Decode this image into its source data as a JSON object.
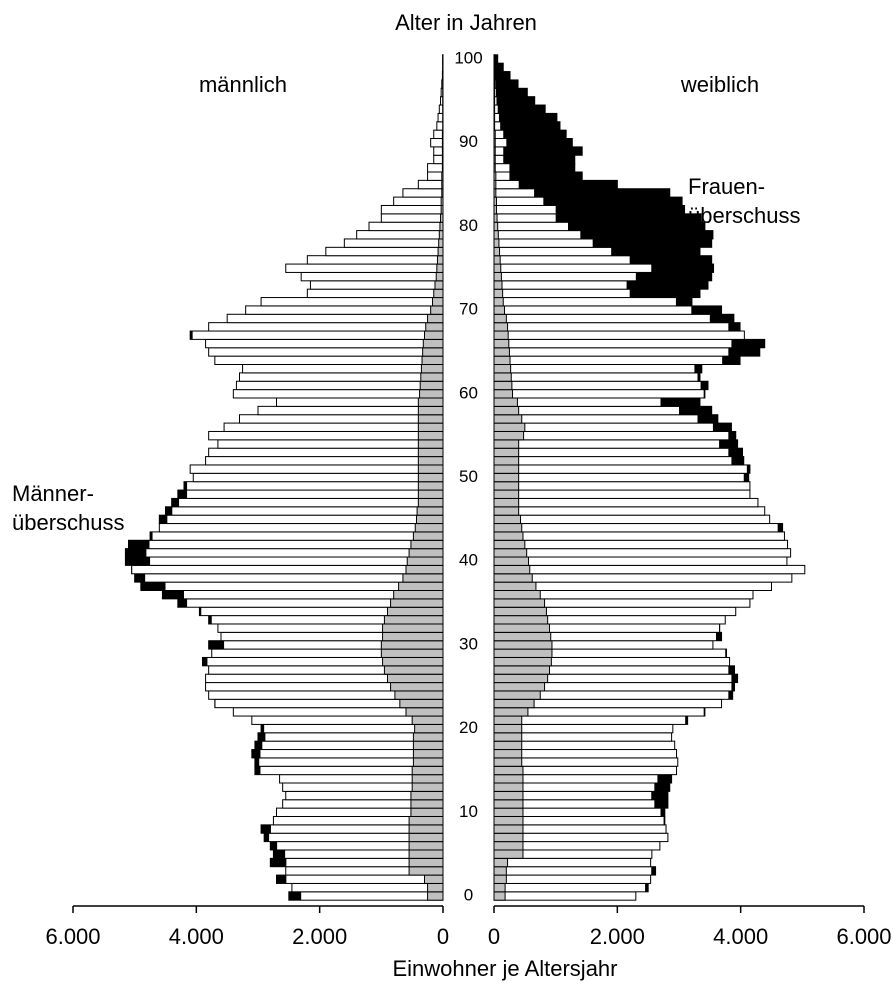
{
  "chart_data": {
    "type": "pyramid",
    "title": "Alter in Jahren",
    "xlabel": "Einwohner je Altersjahr",
    "annotations": [
      {
        "lines": [
          "Männer-",
          "überschuss"
        ]
      },
      {
        "lines": [
          "Frauen-",
          "überschuss"
        ]
      }
    ],
    "ages": [
      0,
      1,
      2,
      3,
      4,
      5,
      6,
      7,
      8,
      9,
      10,
      11,
      12,
      13,
      14,
      15,
      16,
      17,
      18,
      19,
      20,
      21,
      22,
      23,
      24,
      25,
      26,
      27,
      28,
      29,
      30,
      31,
      32,
      33,
      34,
      35,
      36,
      37,
      38,
      39,
      40,
      41,
      42,
      43,
      44,
      45,
      46,
      47,
      48,
      49,
      50,
      51,
      52,
      53,
      54,
      55,
      56,
      57,
      58,
      59,
      60,
      61,
      62,
      63,
      64,
      65,
      66,
      67,
      68,
      69,
      70,
      71,
      72,
      73,
      74,
      75,
      76,
      77,
      78,
      79,
      80,
      81,
      82,
      83,
      84,
      85,
      86,
      87,
      88,
      89,
      90,
      91,
      92,
      93,
      94,
      95,
      96,
      97,
      98,
      99,
      100
    ],
    "yticks": [
      0,
      10,
      20,
      30,
      40,
      50,
      60,
      70,
      80,
      90,
      100
    ],
    "ylim": [
      0,
      100
    ],
    "xlim": [
      0,
      6000
    ],
    "xticks": [
      0,
      {
        "value": 2000,
        "label": "2.000"
      },
      {
        "value": 4000,
        "label": "4.000"
      },
      {
        "value": 6000,
        "label": "6.000"
      }
    ],
    "bar_color": "#ffffff",
    "inner_color": "#c0c0c0",
    "surplus_color": "#000000",
    "series": [
      {
        "name": "männlich",
        "values": [
          2500,
          2450,
          2700,
          2550,
          2800,
          2750,
          2800,
          2900,
          2950,
          2750,
          2700,
          2600,
          2550,
          2600,
          2650,
          3050,
          3050,
          3100,
          3050,
          3000,
          2950,
          3100,
          3400,
          3700,
          3800,
          3850,
          3850,
          3800,
          3900,
          3750,
          3800,
          3600,
          3650,
          3800,
          3950,
          4300,
          4550,
          4900,
          5000,
          5050,
          5150,
          5150,
          5100,
          4750,
          4600,
          4600,
          4500,
          4400,
          4300,
          4200,
          4050,
          4100,
          3850,
          3800,
          3650,
          3800,
          3550,
          3300,
          3000,
          2700,
          3400,
          3350,
          3300,
          3250,
          3700,
          3800,
          3850,
          4100,
          3800,
          3500,
          3200,
          2950,
          2200,
          2150,
          2300,
          2550,
          2200,
          1900,
          1600,
          1400,
          1200,
          1000,
          1000,
          800,
          650,
          400,
          250,
          250,
          150,
          150,
          200,
          150,
          100,
          80,
          60,
          40,
          30,
          20,
          10,
          5,
          5
        ],
        "inner_values": [
          250,
          250,
          300,
          550,
          550,
          550,
          550,
          550,
          550,
          550,
          520,
          520,
          520,
          500,
          500,
          500,
          480,
          480,
          480,
          480,
          460,
          500,
          600,
          700,
          780,
          850,
          900,
          950,
          980,
          1000,
          1000,
          980,
          980,
          950,
          900,
          850,
          800,
          720,
          650,
          600,
          580,
          550,
          520,
          480,
          450,
          430,
          420,
          400,
          400,
          400,
          400,
          400,
          400,
          400,
          400,
          400,
          400,
          400,
          400,
          400,
          380,
          370,
          360,
          350,
          340,
          330,
          320,
          300,
          280,
          250,
          200,
          170,
          150,
          130,
          110,
          100,
          90,
          80,
          70,
          60,
          50,
          40,
          30,
          30,
          20,
          20,
          20,
          10,
          10,
          10,
          10,
          10,
          5,
          5,
          5,
          5,
          5,
          5,
          5,
          5,
          5
        ]
      },
      {
        "name": "weiblich",
        "values": [
          2300,
          2500,
          2540,
          2620,
          2540,
          2560,
          2690,
          2820,
          2790,
          2770,
          2770,
          2820,
          2820,
          2850,
          2880,
          2960,
          2980,
          2960,
          2930,
          2880,
          2900,
          3140,
          3420,
          3690,
          3870,
          3900,
          3950,
          3900,
          3820,
          3770,
          3550,
          3690,
          3660,
          3750,
          3920,
          4150,
          4200,
          4500,
          4830,
          5040,
          4750,
          4810,
          4760,
          4710,
          4680,
          4470,
          4390,
          4280,
          4150,
          4150,
          4130,
          4150,
          4050,
          4030,
          3950,
          3920,
          3850,
          3630,
          3530,
          3340,
          3420,
          3470,
          3340,
          3370,
          3990,
          4310,
          4390,
          4060,
          3990,
          3890,
          3690,
          3210,
          3340,
          3470,
          3530,
          3560,
          3530,
          3340,
          3530,
          3550,
          3420,
          3360,
          3090,
          3050,
          2850,
          2000,
          1430,
          1310,
          1310,
          1430,
          1270,
          1170,
          1070,
          1020,
          830,
          660,
          540,
          390,
          260,
          150,
          60
        ],
        "inner_values": [
          180,
          180,
          200,
          200,
          220,
          470,
          470,
          470,
          470,
          470,
          470,
          470,
          470,
          470,
          470,
          470,
          450,
          450,
          450,
          450,
          450,
          450,
          550,
          650,
          750,
          820,
          870,
          900,
          930,
          940,
          940,
          920,
          900,
          870,
          850,
          820,
          750,
          680,
          620,
          580,
          560,
          530,
          500,
          470,
          450,
          430,
          400,
          400,
          400,
          400,
          400,
          400,
          400,
          400,
          400,
          480,
          500,
          450,
          400,
          380,
          300,
          290,
          280,
          270,
          260,
          250,
          240,
          230,
          220,
          200,
          170,
          150,
          140,
          130,
          120,
          110,
          100,
          90,
          80,
          70,
          60,
          50,
          40,
          40,
          30,
          30,
          30,
          20,
          20,
          20,
          20,
          20,
          10,
          10,
          10,
          10,
          10,
          10,
          10,
          5,
          5
        ]
      }
    ]
  }
}
